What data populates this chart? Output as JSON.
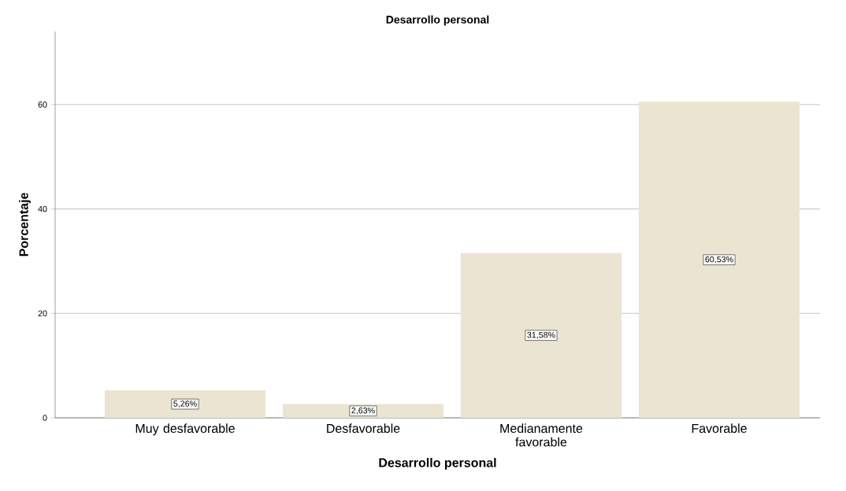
{
  "chart_data": {
    "type": "bar",
    "title": "Desarrollo personal",
    "xlabel": "Desarrollo personal",
    "ylabel": "Porcentaje",
    "categories": [
      "Muy desfavorable",
      "Desfavorable",
      "Medianamente favorable",
      "Favorable"
    ],
    "values": [
      5.26,
      2.63,
      31.58,
      60.53
    ],
    "value_labels": [
      "5,26%",
      "2,63%",
      "31,58%",
      "60,53%"
    ],
    "color": "#ebe4d1",
    "ylim": [
      0,
      74
    ],
    "yticks": [
      0,
      20,
      40,
      60
    ],
    "grid": "y"
  }
}
